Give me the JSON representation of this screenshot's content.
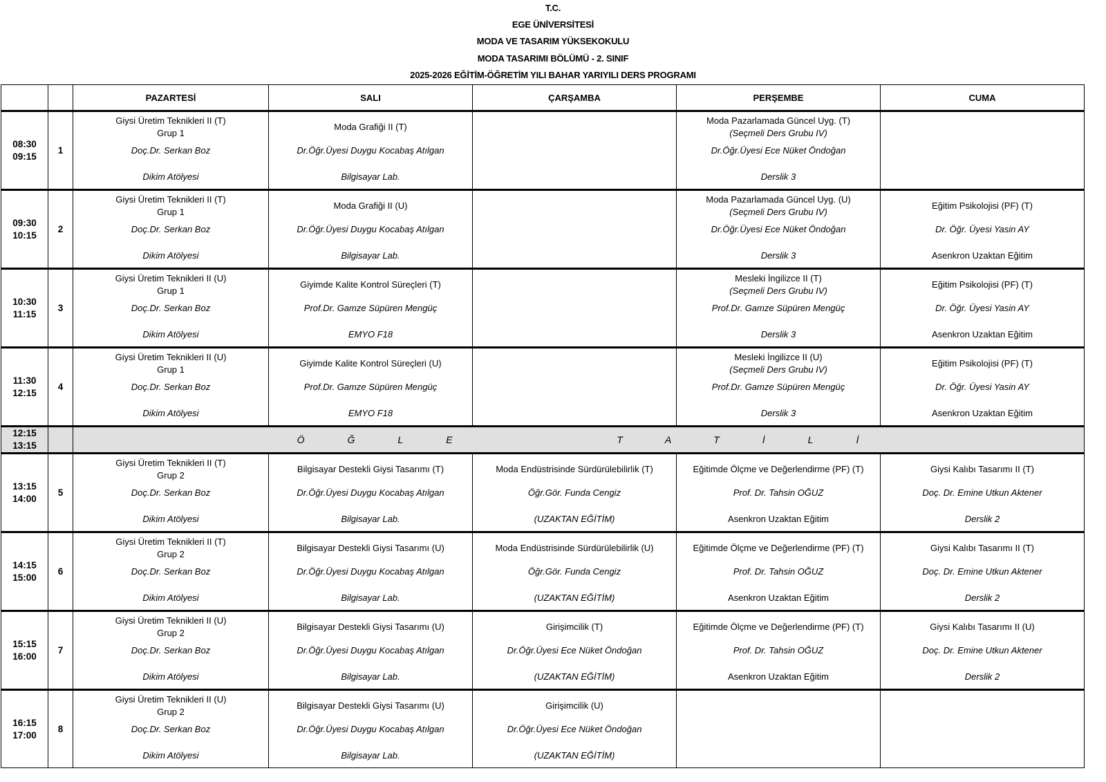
{
  "header": {
    "lines": [
      "T.C.",
      "EGE ÜNİVERSİTESİ",
      "MODA VE TASARIM YÜKSEKOKULU",
      "MODA TASARIMI BÖLÜMÜ - 2. SINIF",
      "2025-2026 EĞİTİM-ÖĞRETİM YILI BAHAR YARIYILI DERS PROGRAMI"
    ]
  },
  "days": [
    "PAZARTESİ",
    "SALI",
    "ÇARŞAMBA",
    "PERŞEMBE",
    "CUMA"
  ],
  "lunch": {
    "start": "12:15",
    "end": "13:15",
    "label": "ÖĞLE TATİLİ",
    "after_slot": 4
  },
  "slots": [
    {
      "start": "08:30",
      "end": "09:15",
      "num": "1",
      "cells": [
        {
          "title": "Giysi Üretim Teknikleri II (T)",
          "sub": "Grup 1",
          "person": "Doç.Dr. Serkan Boz",
          "loc": "Dikim Atölyesi"
        },
        {
          "title": "Moda Grafiği II (T)",
          "person": "Dr.Öğr.Üyesi Duygu Kocabaş Atılgan",
          "loc": "Bilgisayar Lab."
        },
        null,
        {
          "title": "Moda Pazarlamada Güncel Uyg. (T)",
          "sub": "(Seçmeli Ders Grubu IV)",
          "sub_italic": true,
          "person": "Dr.Öğr.Üyesi Ece Nüket Öndoğan",
          "loc": "Derslik 3"
        },
        null
      ]
    },
    {
      "start": "09:30",
      "end": "10:15",
      "num": "2",
      "cells": [
        {
          "title": "Giysi Üretim Teknikleri II (T)",
          "sub": "Grup 1",
          "person": "Doç.Dr. Serkan Boz",
          "loc": "Dikim Atölyesi"
        },
        {
          "title": "Moda Grafiği II (U)",
          "person": "Dr.Öğr.Üyesi Duygu Kocabaş Atılgan",
          "loc": "Bilgisayar Lab."
        },
        null,
        {
          "title": "Moda Pazarlamada Güncel Uyg. (U)",
          "sub": "(Seçmeli Ders Grubu IV)",
          "sub_italic": true,
          "person": "Dr.Öğr.Üyesi Ece Nüket Öndoğan",
          "loc": "Derslik 3"
        },
        {
          "title": "Eğitim Psikolojisi (PF) (T)",
          "person": "Dr. Öğr. Üyesi Yasin AY",
          "loc": "Asenkron Uzaktan Eğitim",
          "loc_plain": true
        }
      ]
    },
    {
      "start": "10:30",
      "end": "11:15",
      "num": "3",
      "cells": [
        {
          "title": "Giysi Üretim Teknikleri II (U)",
          "sub": "Grup 1",
          "person": "Doç.Dr. Serkan Boz",
          "loc": "Dikim Atölyesi"
        },
        {
          "title": "Giyimde Kalite Kontrol Süreçleri (T)",
          "person": "Prof.Dr. Gamze Süpüren Mengüç",
          "loc": "EMYO F18"
        },
        null,
        {
          "title": "Mesleki İngilizce II (T)",
          "sub": "(Seçmeli Ders Grubu IV)",
          "sub_italic": true,
          "person": "Prof.Dr. Gamze Süpüren Mengüç",
          "loc": "Derslik 3"
        },
        {
          "title": "Eğitim Psikolojisi (PF) (T)",
          "person": "Dr. Öğr. Üyesi Yasin AY",
          "loc": "Asenkron Uzaktan Eğitim",
          "loc_plain": true
        }
      ]
    },
    {
      "start": "11:30",
      "end": "12:15",
      "num": "4",
      "cells": [
        {
          "title": "Giysi Üretim Teknikleri II (U)",
          "sub": "Grup 1",
          "person": "Doç.Dr. Serkan Boz",
          "loc": "Dikim Atölyesi"
        },
        {
          "title": "Giyimde Kalite Kontrol Süreçleri (U)",
          "person": "Prof.Dr. Gamze Süpüren Mengüç",
          "loc": "EMYO F18"
        },
        null,
        {
          "title": "Mesleki İngilizce II (U)",
          "sub": "(Seçmeli Ders Grubu IV)",
          "sub_italic": true,
          "person": "Prof.Dr. Gamze Süpüren Mengüç",
          "loc": "Derslik 3"
        },
        {
          "title": "Eğitim Psikolojisi (PF) (T)",
          "person": "Dr. Öğr. Üyesi Yasin AY",
          "loc": "Asenkron Uzaktan Eğitim",
          "loc_plain": true
        }
      ]
    },
    {
      "start": "13:15",
      "end": "14:00",
      "num": "5",
      "cells": [
        {
          "title": "Giysi Üretim Teknikleri II (T)",
          "sub": "Grup 2",
          "person": "Doç.Dr. Serkan Boz",
          "loc": "Dikim Atölyesi"
        },
        {
          "title": "Bilgisayar Destekli Giysi Tasarımı (T)",
          "person": "Dr.Öğr.Üyesi Duygu Kocabaş Atılgan",
          "loc": "Bilgisayar Lab."
        },
        {
          "title": "Moda Endüstrisinde Sürdürülebilirlik (T)",
          "person": "Öğr.Gör. Funda Cengiz",
          "loc": "(UZAKTAN EĞİTİM)"
        },
        {
          "title": "Eğitimde Ölçme ve Değerlendirme (PF) (T)",
          "person": "Prof. Dr. Tahsin OĞUZ",
          "loc": "Asenkron Uzaktan Eğitim",
          "loc_plain": true
        },
        {
          "title": "Giysi Kalıbı Tasarımı II (T)",
          "person": "Doç. Dr. Emine Utkun Aktener",
          "loc": "Derslik 2"
        }
      ]
    },
    {
      "start": "14:15",
      "end": "15:00",
      "num": "6",
      "cells": [
        {
          "title": "Giysi Üretim Teknikleri II (T)",
          "sub": "Grup 2",
          "person": "Doç.Dr. Serkan Boz",
          "loc": "Dikim Atölyesi"
        },
        {
          "title": "Bilgisayar Destekli Giysi Tasarımı (U)",
          "person": "Dr.Öğr.Üyesi Duygu Kocabaş Atılgan",
          "loc": "Bilgisayar Lab."
        },
        {
          "title": "Moda Endüstrisinde Sürdürülebilirlik (U)",
          "person": "Öğr.Gör. Funda Cengiz",
          "loc": "(UZAKTAN EĞİTİM)"
        },
        {
          "title": "Eğitimde Ölçme ve Değerlendirme (PF) (T)",
          "person": "Prof. Dr. Tahsin OĞUZ",
          "loc": "Asenkron Uzaktan Eğitim",
          "loc_plain": true
        },
        {
          "title": "Giysi Kalıbı Tasarımı II (T)",
          "person": "Doç. Dr. Emine Utkun Aktener",
          "loc": "Derslik 2"
        }
      ]
    },
    {
      "start": "15:15",
      "end": "16:00",
      "num": "7",
      "cells": [
        {
          "title": "Giysi Üretim Teknikleri II (U)",
          "sub": "Grup 2",
          "person": "Doç.Dr. Serkan Boz",
          "loc": "Dikim Atölyesi"
        },
        {
          "title": "Bilgisayar Destekli Giysi Tasarımı (U)",
          "person": "Dr.Öğr.Üyesi Duygu Kocabaş Atılgan",
          "loc": "Bilgisayar Lab."
        },
        {
          "title": "Girişimcilik (T)",
          "person": "Dr.Öğr.Üyesi Ece Nüket Öndoğan",
          "loc": "(UZAKTAN EĞİTİM)"
        },
        {
          "title": "Eğitimde Ölçme ve Değerlendirme (PF) (T)",
          "person": "Prof. Dr. Tahsin OĞUZ",
          "loc": "Asenkron Uzaktan Eğitim",
          "loc_plain": true
        },
        {
          "title": "Giysi Kalıbı Tasarımı II (U)",
          "person": "Doç. Dr. Emine Utkun Aktener",
          "loc": "Derslik 2"
        }
      ]
    },
    {
      "start": "16:15",
      "end": "17:00",
      "num": "8",
      "cells": [
        {
          "title": "Giysi Üretim Teknikleri II (U)",
          "sub": "Grup 2",
          "person": "Doç.Dr. Serkan Boz",
          "loc": "Dikim Atölyesi"
        },
        {
          "title": "Bilgisayar Destekli Giysi Tasarımı (U)",
          "person": "Dr.Öğr.Üyesi Duygu Kocabaş Atılgan",
          "loc": "Bilgisayar Lab."
        },
        {
          "title": "Girişimcilik (U)",
          "person": "Dr.Öğr.Üyesi Ece Nüket Öndoğan",
          "loc": "(UZAKTAN EĞİTİM)"
        },
        null,
        null
      ]
    }
  ]
}
